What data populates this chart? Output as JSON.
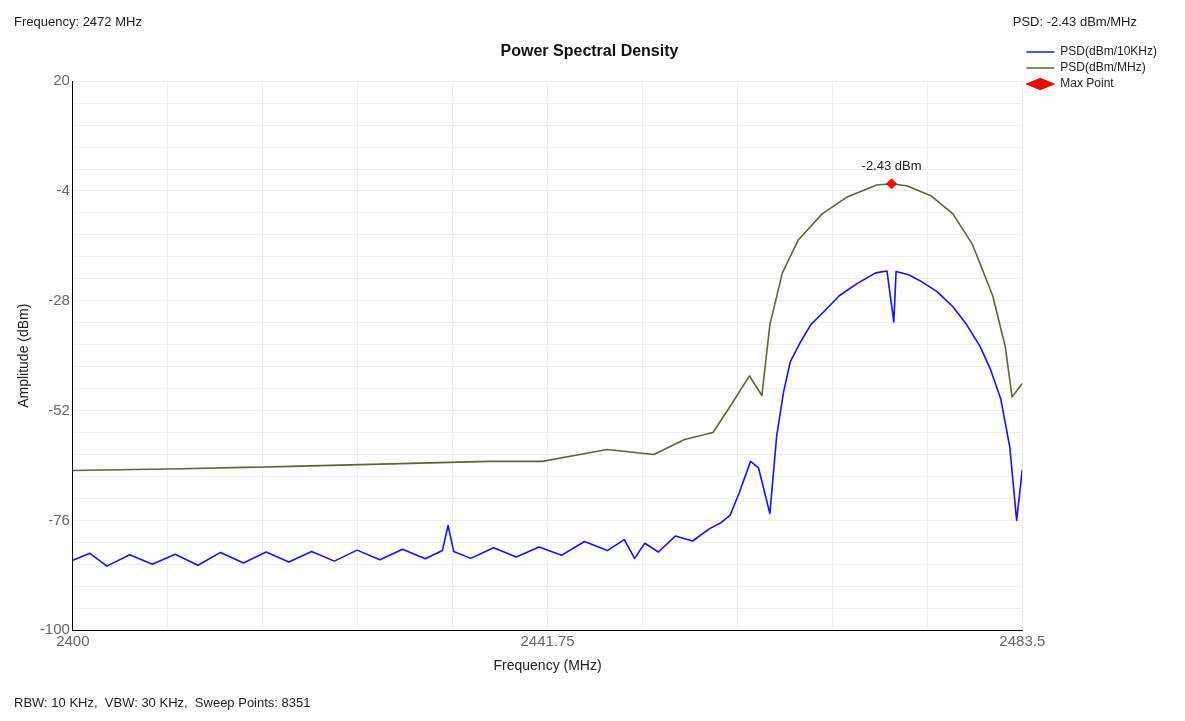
{
  "chart_data": {
    "type": "line",
    "title": "Power Spectral Density",
    "xlabel": "Frequency (MHz)",
    "ylabel": "Amplitude (dBm)",
    "annotations": [
      "Frequency: 2472 MHz",
      "PSD: -2.43 dBm/MHz",
      "RBW: 10 KHz,  VBW: 30 KHz,  Sweep Points: 8351",
      {
        "text": "-2.43 dBm",
        "x": 2472,
        "y": -2.43
      }
    ],
    "xlim": [
      2400,
      2483.5
    ],
    "xticks": [
      2400,
      {
        "value": 2408.35,
        "label": null
      },
      {
        "value": 2416.7,
        "label": null
      },
      {
        "value": 2425.05,
        "label": null
      },
      {
        "value": 2433.4,
        "label": null
      },
      2441.75,
      {
        "value": 2450.1,
        "label": null
      },
      {
        "value": 2458.45,
        "label": null
      },
      {
        "value": 2466.8,
        "label": null
      },
      {
        "value": 2475.15,
        "label": null
      },
      2483.5
    ],
    "ylim": [
      -100,
      20
    ],
    "yticks": [
      20,
      {
        "value": 15.2,
        "label": null
      },
      {
        "value": 10.4,
        "label": null
      },
      {
        "value": 5.6,
        "label": null
      },
      {
        "value": 0.8,
        "label": null
      },
      -4,
      {
        "value": -8.8,
        "label": null
      },
      {
        "value": -13.6,
        "label": null
      },
      {
        "value": -18.4,
        "label": null
      },
      {
        "value": -23.2,
        "label": null
      },
      -28,
      {
        "value": -32.8,
        "label": null
      },
      {
        "value": -37.6,
        "label": null
      },
      {
        "value": -42.4,
        "label": null
      },
      {
        "value": -47.2,
        "label": null
      },
      -52,
      {
        "value": -56.8,
        "label": null
      },
      {
        "value": -61.6,
        "label": null
      },
      {
        "value": -66.4,
        "label": null
      },
      {
        "value": -71.2,
        "label": null
      },
      -76,
      {
        "value": -80.8,
        "label": null
      },
      {
        "value": -85.6,
        "label": null
      },
      {
        "value": -90.4,
        "label": null
      },
      {
        "value": -95.2,
        "label": null
      },
      -100
    ],
    "grid": true,
    "legend": "top right",
    "marker": "none",
    "line_style": "solid",
    "series": [
      {
        "name": "PSD(dBm/10KHz)",
        "color": "#1414f0",
        "x": [
          2400,
          2401.5,
          2403,
          2405,
          2407,
          2409,
          2411,
          2413,
          2415,
          2417,
          2419,
          2421,
          2423,
          2425,
          2427,
          2429,
          2431,
          2432.5,
          2433,
          2433.5,
          2435,
          2437,
          2439,
          2441,
          2443,
          2445,
          2447,
          2448.5,
          2449.4,
          2450.3,
          2451.5,
          2453,
          2454.5,
          2456,
          2457,
          2457.8,
          2458.6,
          2459.6,
          2460.3,
          2461.3,
          2461.9,
          2462.5,
          2463.1,
          2464,
          2464.9,
          2466,
          2467.4,
          2469,
          2470.6,
          2471.6,
          2472.2,
          2472.4,
          2473.5,
          2474.5,
          2476,
          2477.4,
          2478.6,
          2479.8,
          2480.7,
          2481.6,
          2482.4,
          2483,
          2483.5
        ],
        "values": [
          -84.7,
          -83.2,
          -86,
          -83.5,
          -85.6,
          -83.4,
          -85.8,
          -83,
          -85.3,
          -82.9,
          -85.1,
          -82.8,
          -84.9,
          -82.5,
          -84.6,
          -82.3,
          -84.4,
          -82.6,
          -77.1,
          -82.8,
          -84.3,
          -82,
          -84,
          -81.8,
          -83.6,
          -80.6,
          -82.6,
          -80.2,
          -84.3,
          -81,
          -82.9,
          -79.4,
          -80.5,
          -77.8,
          -76.5,
          -74.9,
          -70,
          -63.1,
          -64.5,
          -74.5,
          -57.5,
          -48,
          -41.3,
          -37,
          -33.2,
          -30.5,
          -26.9,
          -24.2,
          -21.9,
          -21.5,
          -32.6,
          -21.6,
          -22.3,
          -23.6,
          -26,
          -29.3,
          -33.2,
          -38,
          -43,
          -49.4,
          -60,
          -76,
          -64.9
        ]
      },
      {
        "name": "PSD(dBm/MHz)",
        "color": "#556b2f",
        "x": [
          2400,
          2409.6,
          2419.2,
          2428.8,
          2436.5,
          2441.3,
          2444.1,
          2447,
          2451.1,
          2453.8,
          2456.3,
          2457.8,
          2459.5,
          2460.6,
          2461.3,
          2462.4,
          2463.8,
          2465.9,
          2468.1,
          2470.7,
          2472,
          2473.4,
          2475.5,
          2477.4,
          2479.1,
          2480.9,
          2482,
          2482.6,
          2483.5
        ],
        "values": [
          -65.1,
          -64.7,
          -64.2,
          -63.6,
          -63.1,
          -63.1,
          -61.8,
          -60.5,
          -61.6,
          -58.3,
          -56.8,
          -51.1,
          -44.4,
          -48.7,
          -33.2,
          -21.9,
          -14.7,
          -9,
          -5.3,
          -2.7,
          -2.43,
          -2.9,
          -5.1,
          -9,
          -15.6,
          -26.9,
          -38,
          -49,
          -46.1
        ]
      },
      {
        "name": "Max Point",
        "type": "scatter",
        "marker": "diamond",
        "color": "#ff0000",
        "x": [
          2472
        ],
        "values": [
          -2.43
        ]
      }
    ]
  }
}
